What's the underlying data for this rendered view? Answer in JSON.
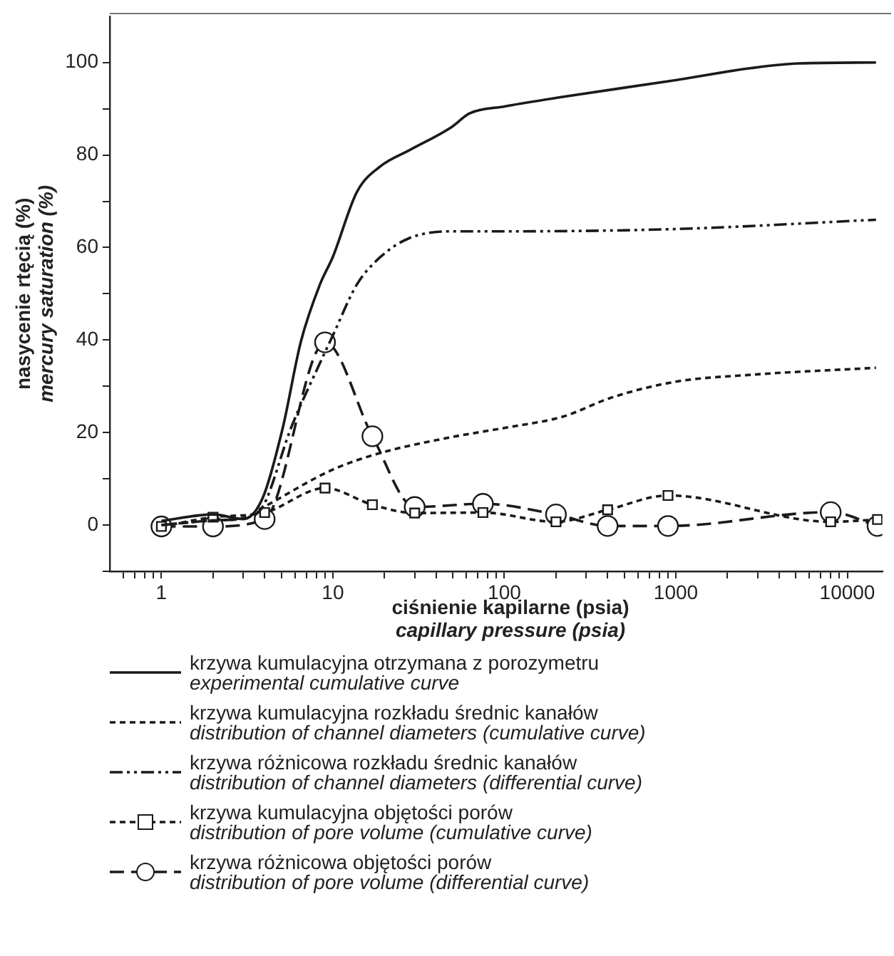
{
  "chart_data": {
    "type": "line",
    "xlabel": "ciśnienie kapilarne (psia)\ncapillary pressure (psia)",
    "ylabel": "nasycenie rtęcią (%)\nmercury saturation (%)",
    "log": "x",
    "legend": "bottom",
    "xlim": [
      0.5,
      16000
    ],
    "xticks": [
      {
        "value": 0.6,
        "label": null
      },
      {
        "value": 0.7,
        "label": null
      },
      {
        "value": 0.8,
        "label": null
      },
      {
        "value": 0.9,
        "label": null
      },
      1,
      {
        "value": 2,
        "label": null
      },
      {
        "value": 3,
        "label": null
      },
      {
        "value": 4,
        "label": null
      },
      {
        "value": 5,
        "label": null
      },
      {
        "value": 6,
        "label": null
      },
      {
        "value": 7,
        "label": null
      },
      {
        "value": 8,
        "label": null
      },
      {
        "value": 9,
        "label": null
      },
      10,
      {
        "value": 20,
        "label": null
      },
      {
        "value": 30,
        "label": null
      },
      {
        "value": 40,
        "label": null
      },
      {
        "value": 50,
        "label": null
      },
      {
        "value": 60,
        "label": null
      },
      {
        "value": 70,
        "label": null
      },
      {
        "value": 80,
        "label": null
      },
      {
        "value": 90,
        "label": null
      },
      100,
      {
        "value": 200,
        "label": null
      },
      {
        "value": 300,
        "label": null
      },
      {
        "value": 400,
        "label": null
      },
      {
        "value": 500,
        "label": null
      },
      {
        "value": 600,
        "label": null
      },
      {
        "value": 700,
        "label": null
      },
      {
        "value": 800,
        "label": null
      },
      {
        "value": 900,
        "label": null
      },
      1000,
      {
        "value": 2000,
        "label": null
      },
      {
        "value": 3000,
        "label": null
      },
      {
        "value": 4000,
        "label": null
      },
      {
        "value": 5000,
        "label": null
      },
      {
        "value": 6000,
        "label": null
      },
      {
        "value": 7000,
        "label": null
      },
      {
        "value": 8000,
        "label": null
      },
      {
        "value": 9000,
        "label": null
      },
      10000
    ],
    "ylim": [
      -10,
      110
    ],
    "yticks": [
      {
        "value": -10,
        "label": null
      },
      0,
      {
        "value": 10,
        "label": null
      },
      20,
      {
        "value": 30,
        "label": null
      },
      40,
      {
        "value": 50,
        "label": null
      },
      60,
      {
        "value": 70,
        "label": null
      },
      80,
      {
        "value": 90,
        "label": null
      },
      100
    ],
    "series": [
      {
        "name": "krzywa kumulacyjna otrzymana z porozymetru\nexperimental cumulative curve",
        "color": "#1a1a1a",
        "line_style": "solid",
        "marker": "none",
        "x": [
          1,
          2,
          3,
          3.9,
          5.1,
          6.5,
          8.4,
          10,
          13.8,
          19,
          27.8,
          49,
          62.7,
          100,
          222,
          1000,
          2760,
          5200,
          14700
        ],
        "values": [
          0.9,
          2.3,
          1.3,
          5.9,
          21,
          39.6,
          52,
          58,
          72,
          77.6,
          81,
          86,
          89,
          90.5,
          92.6,
          96.2,
          98.8,
          99.8,
          100
        ]
      },
      {
        "name": "krzywa kumulacyjna rozkładu średnic kanałów\ndistribution of channel diameters (cumulative curve)",
        "color": "#1a1a1a",
        "line_style": "dotted",
        "marker": "none",
        "x": [
          1,
          2,
          3,
          4,
          10,
          19,
          49,
          100,
          222,
          417,
          1000,
          2760,
          14700
        ],
        "values": [
          0,
          1,
          1.5,
          4,
          12,
          15.6,
          19,
          21,
          23.5,
          27.5,
          31,
          32.5,
          34
        ]
      },
      {
        "name": "krzywa różnicowa rozkładu średnic kanałów\ndistribution of channel diameters (differential curve)",
        "color": "#1a1a1a",
        "line_style": "dashdot",
        "marker": "none",
        "x": [
          1,
          2,
          3,
          3.9,
          5.7,
          8.4,
          10,
          13.8,
          19,
          27.8,
          49,
          100,
          1000,
          14700
        ],
        "values": [
          0,
          1,
          1.5,
          4,
          21,
          35,
          41,
          52,
          58,
          62,
          63.5,
          63.5,
          64,
          66
        ]
      },
      {
        "name": "krzywa kumulacyjna objętości porów\ndistribution of pore volume (cumulative curve)",
        "color": "#1a1a1a",
        "line_style": "dotted",
        "marker": "square",
        "x": [
          1,
          2,
          4,
          9,
          17,
          30,
          75,
          200,
          400,
          900,
          8000,
          15000
        ],
        "values": [
          -0.3,
          1.7,
          2.7,
          8,
          4.4,
          2.6,
          2.7,
          0.7,
          3.3,
          6.4,
          0.7,
          1.2
        ]
      },
      {
        "name": "krzywa różnicowa objętości porów\ndistribution of pore volume (differential curve)",
        "color": "#1a1a1a",
        "line_style": "dashed",
        "marker": "circle",
        "x": [
          1,
          2,
          4,
          9,
          17,
          30,
          75,
          200,
          400,
          900,
          8000,
          15000
        ],
        "values": [
          -0.3,
          -0.3,
          1.3,
          39.5,
          19.2,
          3.9,
          4.6,
          2.3,
          -0.2,
          -0.2,
          2.8,
          -0.2
        ]
      }
    ]
  }
}
